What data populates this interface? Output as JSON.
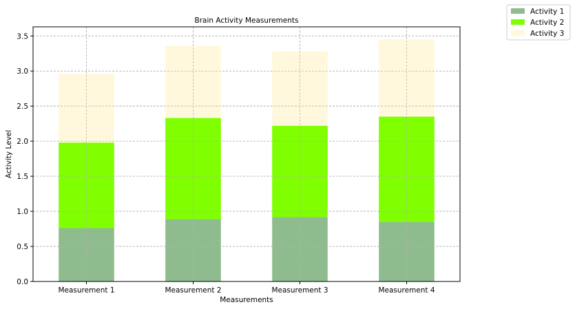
{
  "chart_data": {
    "type": "bar",
    "stacked": true,
    "title": "Brain Activity Measurements",
    "xlabel": "Measurements",
    "ylabel": "Activity Level",
    "categories": [
      "Measurement 1",
      "Measurement 2",
      "Measurement 3",
      "Measurement 4"
    ],
    "series": [
      {
        "name": "Activity 1",
        "color": "#8fbc8f",
        "values": [
          0.76,
          0.89,
          0.92,
          0.85
        ]
      },
      {
        "name": "Activity 2",
        "color": "#7fff00",
        "values": [
          1.22,
          1.44,
          1.3,
          1.5
        ]
      },
      {
        "name": "Activity 3",
        "color": "#fff8dc",
        "values": [
          0.98,
          1.03,
          1.06,
          1.1
        ]
      }
    ],
    "ylim": [
      0,
      3.63
    ],
    "yticks": [
      "0.0",
      "0.5",
      "1.0",
      "1.5",
      "2.0",
      "2.5",
      "3.0",
      "3.5"
    ],
    "grid": true,
    "legend_position": "top-right outside"
  }
}
